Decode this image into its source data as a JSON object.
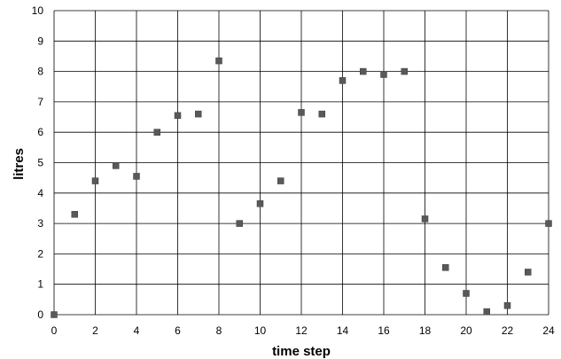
{
  "chart_data": {
    "type": "scatter",
    "xlabel": "time step",
    "ylabel": "litres",
    "xlim": [
      0,
      24
    ],
    "ylim": [
      0,
      10
    ],
    "x_ticks": [
      "0",
      "2",
      "4",
      "6",
      "8",
      "10",
      "12",
      "14",
      "16",
      "18",
      "20",
      "22",
      "24"
    ],
    "y_ticks": [
      "0",
      "1",
      "2",
      "3",
      "4",
      "5",
      "6",
      "7",
      "8",
      "9",
      "10"
    ],
    "grid": true,
    "marker": "square",
    "marker_color": "#595959",
    "series": [
      {
        "x": [
          0,
          1,
          2,
          3,
          4,
          5,
          6,
          7,
          8,
          9,
          10,
          11,
          12,
          13,
          14,
          15,
          16,
          17,
          18,
          19,
          20,
          21,
          22,
          23,
          24
        ],
        "y": [
          0,
          3.3,
          4.4,
          4.9,
          4.55,
          6,
          6.55,
          6.6,
          8.35,
          3,
          3.65,
          4.4,
          6.65,
          6.6,
          7.7,
          8,
          7.9,
          8,
          3.15,
          1.55,
          0.7,
          0.1,
          0.3,
          1.4,
          3
        ]
      }
    ]
  }
}
